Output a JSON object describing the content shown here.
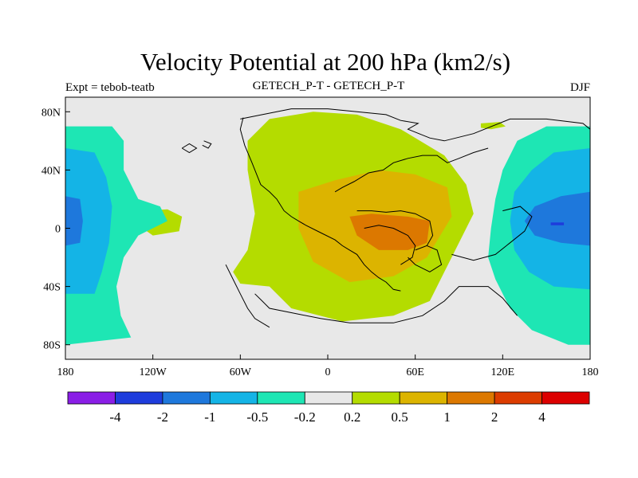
{
  "chart_data": {
    "type": "heatmap",
    "title": "Velocity Potential at 200 hPa (km2/s)",
    "left_string": "Expt = tebob-teatb",
    "center_string": "GETECH_P-T - GETECH_P-T",
    "right_string": "DJF",
    "xlim": [
      -180,
      180
    ],
    "ylim": [
      -90,
      90
    ],
    "x_ticks": [
      {
        "value": -180,
        "label": "180"
      },
      {
        "value": -120,
        "label": "120W"
      },
      {
        "value": -60,
        "label": "60W"
      },
      {
        "value": 0,
        "label": "0"
      },
      {
        "value": 60,
        "label": "60E"
      },
      {
        "value": 120,
        "label": "120E"
      },
      {
        "value": 180,
        "label": "180"
      }
    ],
    "y_ticks": [
      {
        "value": 80,
        "label": "80N"
      },
      {
        "value": 40,
        "label": "40N"
      },
      {
        "value": 0,
        "label": "0"
      },
      {
        "value": -40,
        "label": "40S"
      },
      {
        "value": -80,
        "label": "80S"
      }
    ],
    "colorbar": {
      "levels": [
        -4,
        -2,
        -1,
        -0.5,
        -0.2,
        0.2,
        0.5,
        1,
        2,
        4
      ],
      "labels": [
        "-4",
        "-2",
        "-1",
        "-0.5",
        "-0.2",
        "0.2",
        "0.5",
        "1",
        "2",
        "4"
      ],
      "colors": [
        "#8a1ee6",
        "#1e3cdc",
        "#1e78dc",
        "#14b4e6",
        "#1ee6b4",
        "#e8e8e8",
        "#b4dc00",
        "#dcb400",
        "#dc7800",
        "#dc3c00",
        "#dc0000"
      ]
    },
    "contour_regions": [
      {
        "level": "0.2 to 0.5",
        "color": "#b4dc00",
        "polygon": [
          [
            -40,
            75
          ],
          [
            -10,
            80
          ],
          [
            20,
            78
          ],
          [
            50,
            68
          ],
          [
            80,
            50
          ],
          [
            95,
            30
          ],
          [
            100,
            10
          ],
          [
            90,
            -10
          ],
          [
            80,
            -30
          ],
          [
            70,
            -50
          ],
          [
            45,
            -60
          ],
          [
            10,
            -64
          ],
          [
            -25,
            -55
          ],
          [
            -40,
            -40
          ],
          [
            -60,
            -38
          ],
          [
            -65,
            -30
          ],
          [
            -55,
            -15
          ],
          [
            -50,
            10
          ],
          [
            -55,
            40
          ],
          [
            -55,
            60
          ]
        ]
      },
      {
        "level": "0.2 to 0.5",
        "color": "#b4dc00",
        "polygon": [
          [
            -125,
            12
          ],
          [
            -110,
            13
          ],
          [
            -100,
            8
          ],
          [
            -102,
            -2
          ],
          [
            -120,
            -5
          ],
          [
            -127,
            0
          ]
        ]
      },
      {
        "level": "0.2 to 0.5",
        "color": "#b4dc00",
        "polygon": [
          [
            105,
            72
          ],
          [
            118,
            73
          ],
          [
            122,
            70
          ],
          [
            112,
            68
          ],
          [
            105,
            69
          ]
        ]
      },
      {
        "level": "0.5 to 1",
        "color": "#dcb400",
        "polygon": [
          [
            -20,
            25
          ],
          [
            5,
            33
          ],
          [
            35,
            40
          ],
          [
            60,
            37
          ],
          [
            82,
            28
          ],
          [
            85,
            8
          ],
          [
            68,
            -20
          ],
          [
            45,
            -33
          ],
          [
            15,
            -37
          ],
          [
            -10,
            -23
          ],
          [
            -20,
            0
          ]
        ]
      },
      {
        "level": "1 to 2",
        "color": "#dc7800",
        "polygon": [
          [
            15,
            8
          ],
          [
            30,
            10
          ],
          [
            55,
            8
          ],
          [
            70,
            5
          ],
          [
            68,
            -10
          ],
          [
            55,
            -15
          ],
          [
            35,
            -15
          ],
          [
            20,
            -5
          ]
        ]
      },
      {
        "level": "-0.2 to -0.5",
        "color": "#1ee6b4",
        "polygon": [
          [
            -180,
            70
          ],
          [
            -148,
            70
          ],
          [
            -140,
            60
          ],
          [
            -140,
            40
          ],
          [
            -130,
            20
          ],
          [
            -115,
            15
          ],
          [
            -110,
            5
          ],
          [
            -130,
            -5
          ],
          [
            -140,
            -20
          ],
          [
            -145,
            -40
          ],
          [
            -142,
            -60
          ],
          [
            -135,
            -75
          ],
          [
            -180,
            -80
          ]
        ]
      },
      {
        "level": "-0.2 to -0.5",
        "color": "#1ee6b4",
        "polygon": [
          [
            180,
            70
          ],
          [
            150,
            70
          ],
          [
            130,
            60
          ],
          [
            120,
            40
          ],
          [
            115,
            20
          ],
          [
            112,
            0
          ],
          [
            110,
            -20
          ],
          [
            115,
            -35
          ],
          [
            125,
            -55
          ],
          [
            140,
            -70
          ],
          [
            165,
            -80
          ],
          [
            180,
            -80
          ]
        ]
      },
      {
        "level": "-0.2 to -0.5",
        "color": "#1ee6b4",
        "polygon": [
          [
            -158,
            7
          ],
          [
            -155,
            7
          ],
          [
            -155,
            4
          ],
          [
            -158,
            4
          ]
        ]
      },
      {
        "level": "-0.5 to -1",
        "color": "#14b4e6",
        "polygon": [
          [
            -180,
            55
          ],
          [
            -160,
            52
          ],
          [
            -152,
            35
          ],
          [
            -148,
            15
          ],
          [
            -150,
            -10
          ],
          [
            -155,
            -30
          ],
          [
            -160,
            -45
          ],
          [
            -180,
            -45
          ]
        ]
      },
      {
        "level": "-0.5 to -1",
        "color": "#14b4e6",
        "polygon": [
          [
            180,
            55
          ],
          [
            155,
            52
          ],
          [
            140,
            40
          ],
          [
            128,
            25
          ],
          [
            125,
            5
          ],
          [
            128,
            -15
          ],
          [
            138,
            -30
          ],
          [
            155,
            -40
          ],
          [
            180,
            -42
          ]
        ]
      },
      {
        "level": "-1 to -2",
        "color": "#1e78dc",
        "polygon": [
          [
            -180,
            22
          ],
          [
            -170,
            20
          ],
          [
            -168,
            5
          ],
          [
            -170,
            -10
          ],
          [
            -180,
            -12
          ]
        ]
      },
      {
        "level": "-1 to -2",
        "color": "#1e78dc",
        "polygon": [
          [
            180,
            25
          ],
          [
            160,
            22
          ],
          [
            142,
            15
          ],
          [
            135,
            5
          ],
          [
            142,
            -5
          ],
          [
            160,
            -10
          ],
          [
            180,
            -12
          ]
        ]
      },
      {
        "level": "-2 to -4",
        "color": "#1e3cdc",
        "polygon": [
          [
            153,
            4
          ],
          [
            162,
            4
          ],
          [
            162,
            2
          ],
          [
            153,
            2
          ]
        ]
      }
    ],
    "coastlines": [
      [
        [
          -60,
          75
        ],
        [
          -45,
          78
        ],
        [
          -25,
          82
        ],
        [
          0,
          82
        ],
        [
          20,
          80
        ],
        [
          40,
          78
        ],
        [
          50,
          74
        ],
        [
          62,
          72
        ],
        [
          55,
          68
        ],
        [
          70,
          62
        ],
        [
          80,
          60
        ],
        [
          100,
          65
        ],
        [
          125,
          75
        ],
        [
          150,
          75
        ],
        [
          175,
          72
        ],
        [
          180,
          68
        ]
      ],
      [
        [
          -58,
          76
        ],
        [
          -60,
          68
        ],
        [
          -57,
          57
        ],
        [
          -52,
          45
        ],
        [
          -46,
          30
        ],
        [
          -40,
          25
        ],
        [
          -35,
          20
        ],
        [
          -30,
          12
        ],
        [
          -25,
          8
        ],
        [
          -20,
          5
        ],
        [
          -15,
          2
        ],
        [
          -5,
          -3
        ],
        [
          5,
          -8
        ],
        [
          10,
          -12
        ],
        [
          15,
          -15
        ],
        [
          20,
          -18
        ],
        [
          25,
          -25
        ],
        [
          30,
          -30
        ],
        [
          35,
          -34
        ],
        [
          40,
          -37
        ],
        [
          45,
          -42
        ],
        [
          50,
          -43
        ]
      ],
      [
        [
          -50,
          -45
        ],
        [
          -45,
          -50
        ],
        [
          -40,
          -55
        ],
        [
          -25,
          -58
        ],
        [
          -5,
          -62
        ],
        [
          15,
          -65
        ],
        [
          45,
          -65
        ],
        [
          65,
          -60
        ],
        [
          80,
          -50
        ],
        [
          90,
          -40
        ],
        [
          110,
          -40
        ],
        [
          120,
          -48
        ],
        [
          130,
          -60
        ]
      ],
      [
        [
          5,
          25
        ],
        [
          10,
          28
        ],
        [
          18,
          32
        ],
        [
          28,
          38
        ],
        [
          38,
          40
        ],
        [
          45,
          45
        ],
        [
          55,
          48
        ],
        [
          65,
          50
        ],
        [
          75,
          50
        ],
        [
          82,
          45
        ],
        [
          90,
          48
        ],
        [
          100,
          52
        ],
        [
          110,
          55
        ]
      ],
      [
        [
          20,
          12
        ],
        [
          30,
          12
        ],
        [
          40,
          11
        ],
        [
          50,
          12
        ],
        [
          60,
          10
        ],
        [
          70,
          5
        ],
        [
          72,
          -5
        ],
        [
          68,
          -12
        ],
        [
          60,
          -15
        ]
      ],
      [
        [
          25,
          0
        ],
        [
          35,
          2
        ],
        [
          45,
          0
        ],
        [
          55,
          -5
        ],
        [
          60,
          -12
        ],
        [
          58,
          -20
        ],
        [
          50,
          -25
        ]
      ],
      [
        [
          55,
          -20
        ],
        [
          60,
          -25
        ],
        [
          70,
          -30
        ],
        [
          78,
          -25
        ],
        [
          75,
          -15
        ],
        [
          68,
          -12
        ]
      ],
      [
        [
          85,
          -18
        ],
        [
          100,
          -22
        ],
        [
          115,
          -18
        ],
        [
          125,
          -10
        ],
        [
          135,
          -2
        ],
        [
          140,
          8
        ],
        [
          132,
          15
        ],
        [
          120,
          12
        ]
      ],
      [
        [
          -100,
          55
        ],
        [
          -95,
          58
        ],
        [
          -90,
          55
        ],
        [
          -95,
          52
        ],
        [
          -100,
          55
        ]
      ],
      [
        [
          -85,
          60
        ],
        [
          -80,
          58
        ],
        [
          -82,
          55
        ],
        [
          -86,
          57
        ]
      ],
      [
        [
          -70,
          -25
        ],
        [
          -65,
          -35
        ],
        [
          -60,
          -45
        ],
        [
          -55,
          -55
        ],
        [
          -50,
          -62
        ],
        [
          -40,
          -68
        ]
      ]
    ]
  }
}
